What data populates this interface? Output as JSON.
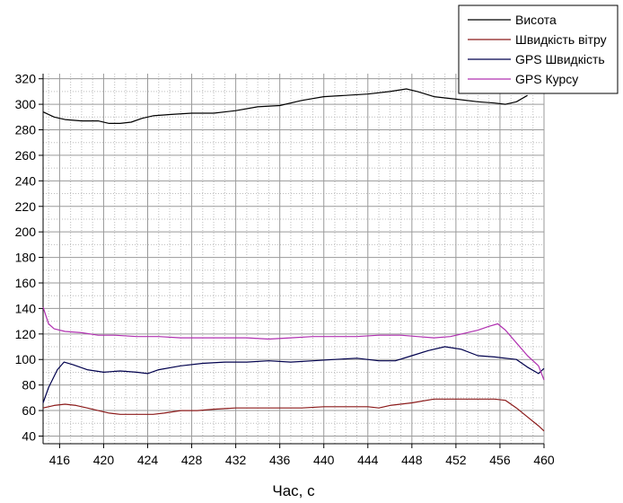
{
  "chart_data": {
    "type": "line",
    "xlabel": "Час, с",
    "ylabel": "",
    "xlim": [
      414.5,
      460
    ],
    "ylim": [
      34,
      324
    ],
    "xticks": [
      416,
      420,
      424,
      428,
      432,
      436,
      440,
      444,
      448,
      452,
      456,
      460
    ],
    "yticks": [
      40,
      60,
      80,
      100,
      120,
      140,
      160,
      180,
      200,
      220,
      240,
      260,
      280,
      300,
      320
    ],
    "grid": true,
    "legend": "top-right",
    "series": [
      {
        "name": "Висота",
        "color": "#000000",
        "x": [
          414.5,
          415.5,
          416.5,
          418,
          419.5,
          420.5,
          421.5,
          422.5,
          423.5,
          424.5,
          426,
          428,
          430,
          432,
          434,
          436,
          438,
          440,
          442,
          444,
          446,
          447.5,
          448.5,
          450,
          452,
          454,
          455.5,
          456.5,
          457.5,
          458.5
        ],
        "y": [
          294,
          290,
          288,
          287,
          287,
          285,
          285,
          286,
          289,
          291,
          292,
          293,
          293,
          295,
          298,
          299,
          303,
          306,
          307,
          308,
          310,
          312,
          310,
          306,
          304,
          302,
          301,
          300,
          302,
          307
        ]
      },
      {
        "name": "Швидкість вітру",
        "color": "#8b1a1a",
        "x": [
          414.5,
          415.5,
          416.5,
          417.5,
          418.5,
          419.5,
          420.5,
          421.5,
          423,
          424.5,
          425.5,
          427,
          428.5,
          430,
          432,
          434,
          436,
          438,
          440,
          442,
          444,
          445,
          446,
          448,
          450,
          452,
          454,
          455.5,
          456.5,
          457.5,
          458.5,
          459.5,
          460
        ],
        "y": [
          62,
          64,
          65,
          64,
          62,
          60,
          58,
          57,
          57,
          57,
          58,
          60,
          60,
          61,
          62,
          62,
          62,
          62,
          63,
          63,
          63,
          62,
          64,
          66,
          69,
          69,
          69,
          69,
          68,
          62,
          55,
          48,
          44
        ]
      },
      {
        "name": "GPS Швидкість",
        "color": "#00004d",
        "x": [
          414.5,
          415,
          415.8,
          416.4,
          417.2,
          418.5,
          420,
          421.5,
          423,
          424,
          425,
          427,
          429,
          431,
          433,
          435,
          437,
          439,
          441,
          443,
          445,
          446.5,
          448,
          449.5,
          451,
          452.5,
          454,
          455.5,
          456.5,
          457.5,
          458.5,
          459.5,
          460
        ],
        "y": [
          66,
          78,
          92,
          98,
          96,
          92,
          90,
          91,
          90,
          89,
          92,
          95,
          97,
          98,
          98,
          99,
          98,
          99,
          100,
          101,
          99,
          99,
          103,
          107,
          110,
          108,
          103,
          102,
          101,
          100,
          94,
          89,
          93
        ]
      },
      {
        "name": "GPS Курсу",
        "color": "#b030b0",
        "x": [
          414.5,
          415,
          415.5,
          416.5,
          418,
          419.5,
          421,
          423,
          425,
          427,
          429,
          431,
          433,
          435,
          437,
          439,
          441,
          443,
          445,
          447,
          448.5,
          450,
          451.5,
          453,
          454,
          455,
          455.8,
          456.5,
          457.5,
          458.5,
          459.5,
          460
        ],
        "y": [
          141,
          128,
          124,
          122,
          121,
          119,
          119,
          118,
          118,
          117,
          117,
          117,
          117,
          116,
          117,
          118,
          118,
          118,
          119,
          119,
          118,
          117,
          118,
          121,
          123,
          126,
          128,
          123,
          113,
          103,
          95,
          84
        ]
      }
    ]
  }
}
